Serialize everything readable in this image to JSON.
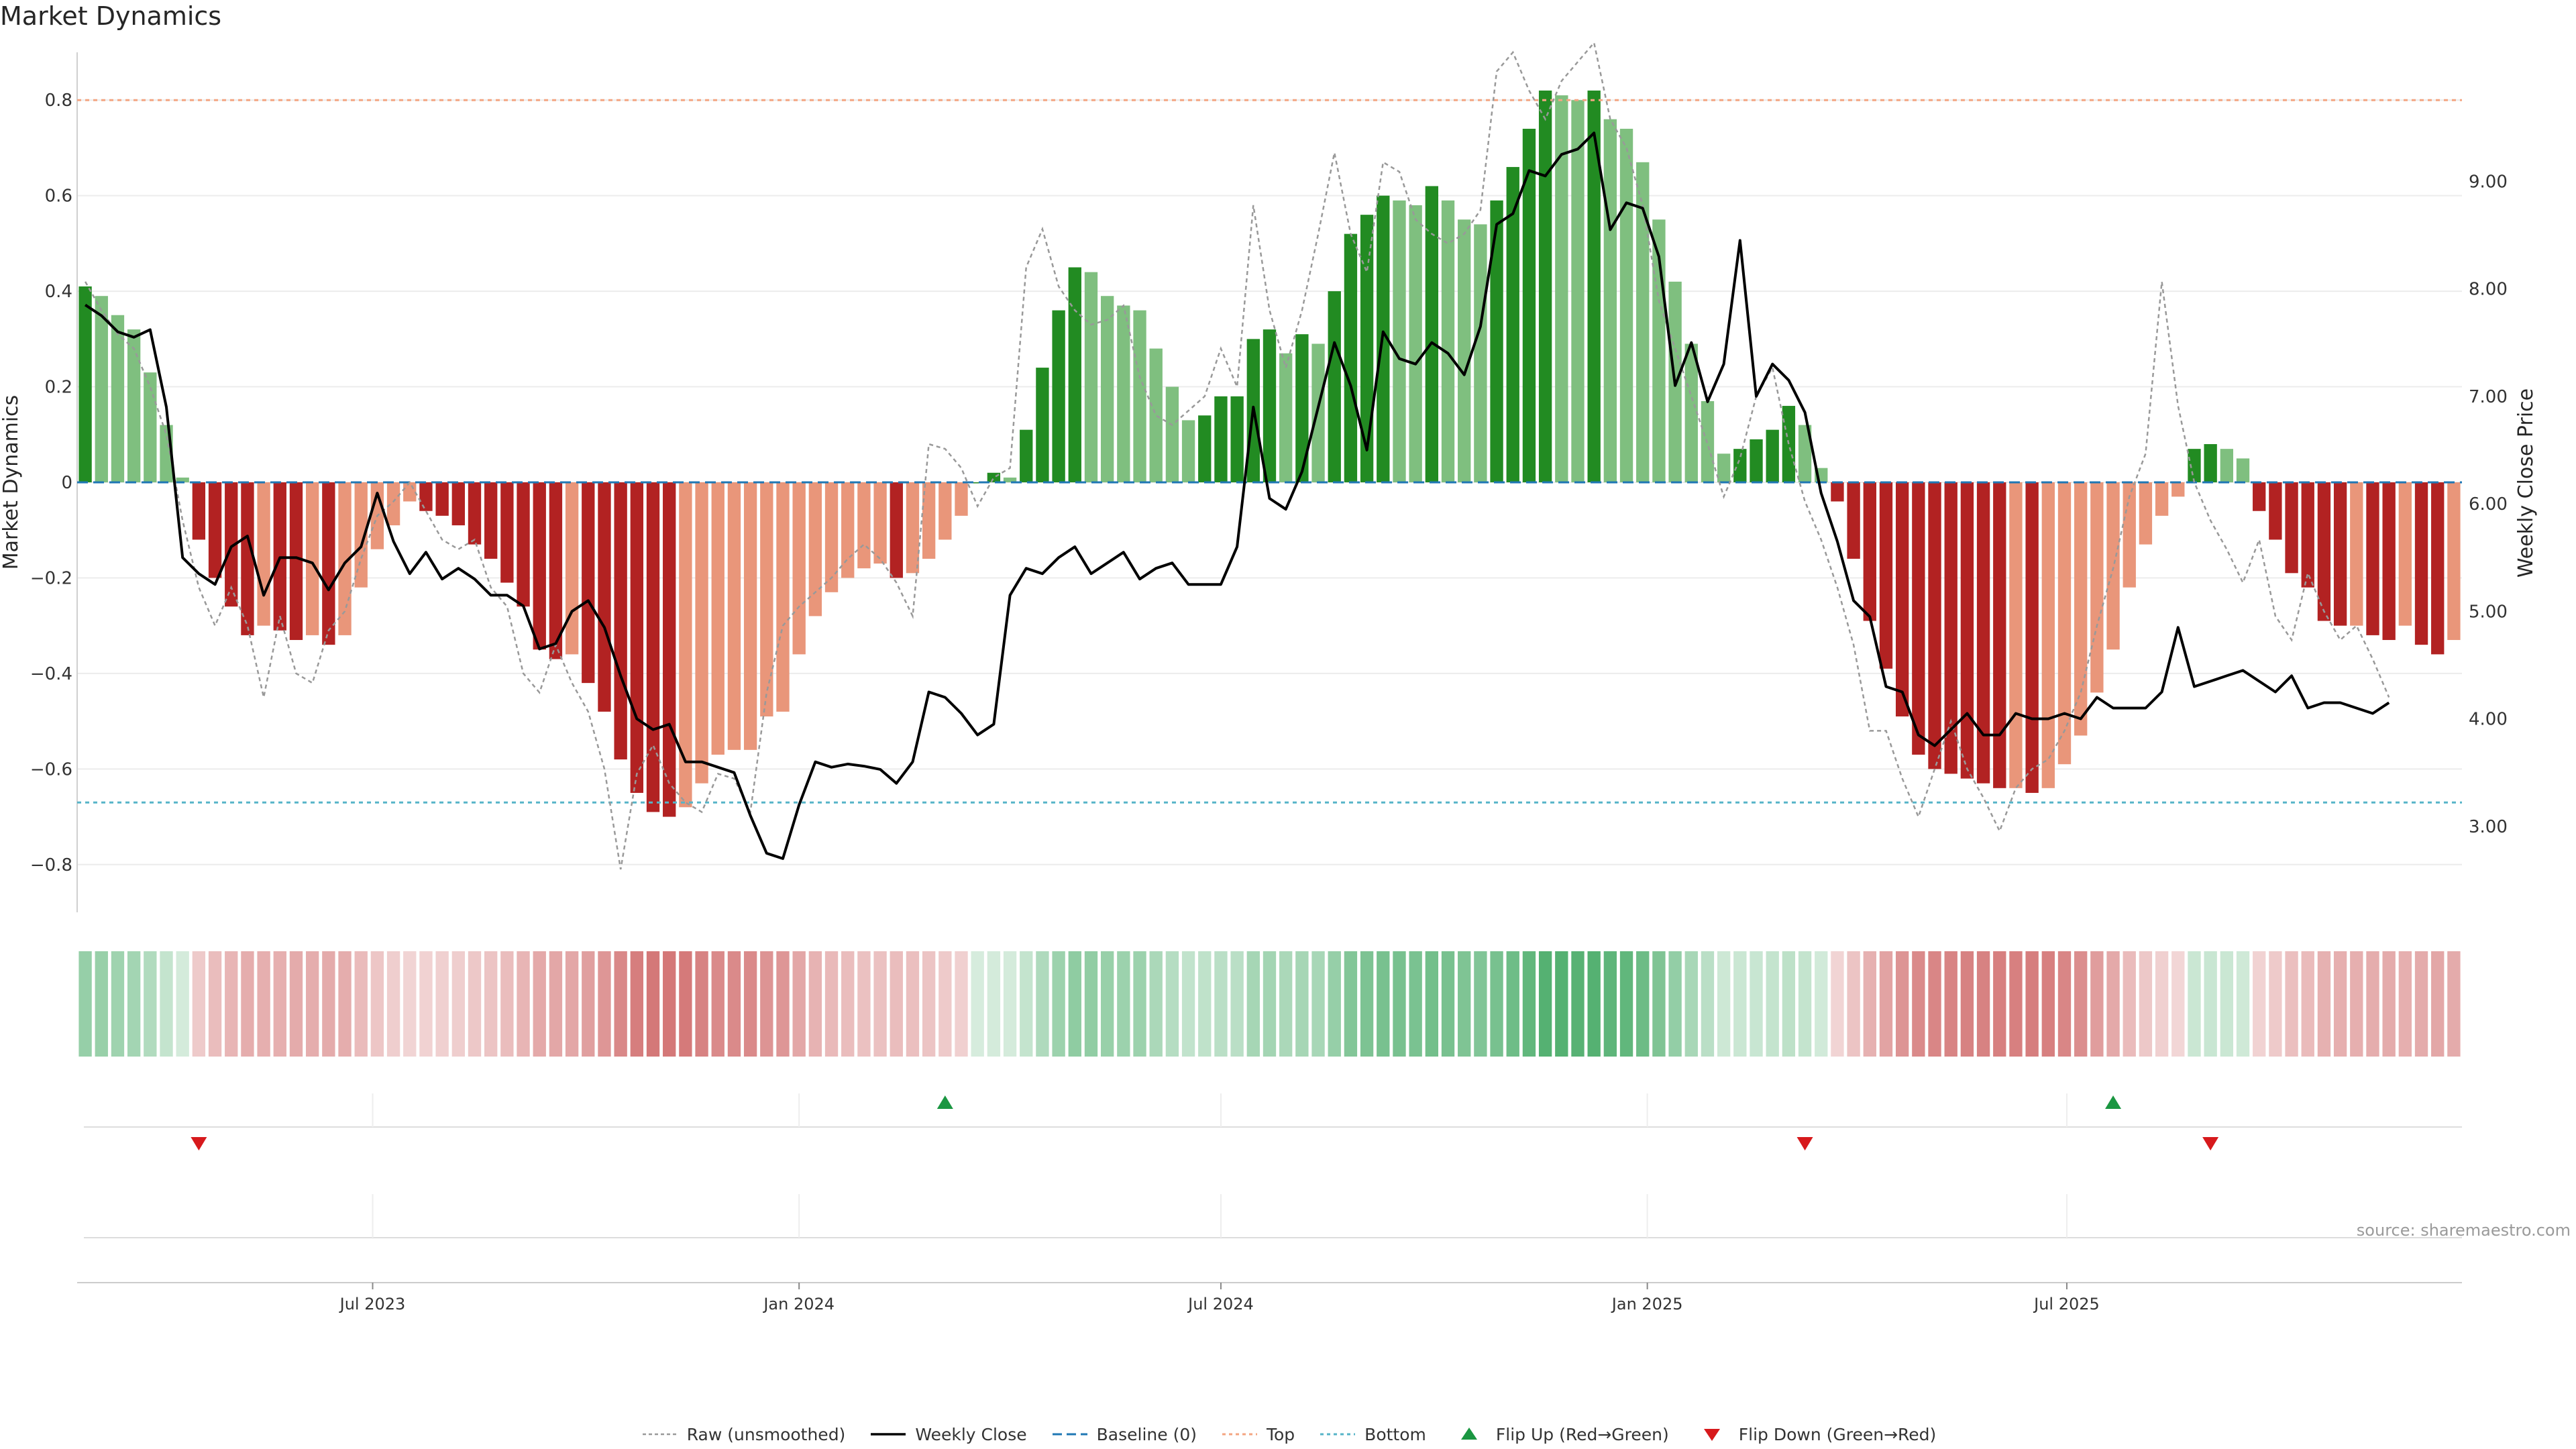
{
  "title": "Market Dynamics",
  "source": "source: sharemaestro.com",
  "legend": [
    {
      "label": "Raw (unsmoothed)",
      "symbol": "raw"
    },
    {
      "label": "Weekly Close",
      "symbol": "close"
    },
    {
      "label": "Baseline (0)",
      "symbol": "baseline"
    },
    {
      "label": "Top",
      "symbol": "top"
    },
    {
      "label": "Bottom",
      "symbol": "bottom"
    },
    {
      "label": "Flip Up (Red→Green)",
      "symbol": "flipup"
    },
    {
      "label": "Flip Down (Green→Red)",
      "symbol": "flipdown"
    }
  ],
  "colors": {
    "strong_green": "#228B22",
    "light_green": "#7FBF7F",
    "strong_red": "#B22222",
    "light_red": "#E9967A",
    "close_line": "#000000",
    "raw_line": "#999999",
    "baseline": "#1f77b4",
    "top": "#f4a582",
    "bottom": "#56b4c8",
    "flip_up": "#1a9641",
    "flip_down": "#d7191c"
  },
  "chart_data": {
    "type": "bar",
    "title": "Market Dynamics",
    "ylabel": "Market Dynamics",
    "y2label": "Weekly Close Price",
    "ylim": [
      -0.9,
      0.9
    ],
    "y_ticks": [
      -0.8,
      -0.6,
      -0.4,
      -0.2,
      0,
      0.2,
      0.4,
      0.6,
      0.8
    ],
    "y_tick_labels": [
      "−0.8",
      "−0.6",
      "−0.4",
      "−0.2",
      "0",
      "0.2",
      "0.4",
      "0.6",
      "0.8"
    ],
    "y2lim": [
      2.2,
      10.2
    ],
    "y2_ticks": [
      3,
      4,
      5,
      6,
      7,
      8,
      9
    ],
    "y2_tick_labels": [
      "3.00",
      "4.00",
      "5.00",
      "6.00",
      "7.00",
      "8.00",
      "9.00"
    ],
    "top_level": 0.8,
    "bottom_level": -0.67,
    "x_start": "2023-02-27",
    "x_ticks": [
      {
        "date": "2023-07-01",
        "label": "Jul 2023"
      },
      {
        "date": "2024-01-01",
        "label": "Jan 2024"
      },
      {
        "date": "2024-07-01",
        "label": "Jul 2024"
      },
      {
        "date": "2025-01-01",
        "label": "Jan 2025"
      },
      {
        "date": "2025-07-01",
        "label": "Jul 2025"
      }
    ],
    "dynamics": [
      0.41,
      0.39,
      0.35,
      0.32,
      0.23,
      0.12,
      0.01,
      -0.12,
      -0.2,
      -0.26,
      -0.32,
      -0.3,
      -0.31,
      -0.33,
      -0.32,
      -0.34,
      -0.32,
      -0.22,
      -0.14,
      -0.09,
      -0.04,
      -0.06,
      -0.07,
      -0.09,
      -0.13,
      -0.16,
      -0.21,
      -0.26,
      -0.35,
      -0.37,
      -0.36,
      -0.42,
      -0.48,
      -0.58,
      -0.65,
      -0.69,
      -0.7,
      -0.68,
      -0.63,
      -0.57,
      -0.56,
      -0.56,
      -0.49,
      -0.48,
      -0.36,
      -0.28,
      -0.23,
      -0.2,
      -0.18,
      -0.17,
      -0.2,
      -0.19,
      -0.16,
      -0.12,
      -0.07,
      0.0,
      0.02,
      0.01,
      0.11,
      0.24,
      0.36,
      0.45,
      0.44,
      0.39,
      0.37,
      0.36,
      0.28,
      0.2,
      0.13,
      0.14,
      0.18,
      0.18,
      0.3,
      0.32,
      0.27,
      0.31,
      0.29,
      0.4,
      0.52,
      0.56,
      0.6,
      0.59,
      0.58,
      0.62,
      0.59,
      0.55,
      0.54,
      0.59,
      0.66,
      0.74,
      0.82,
      0.81,
      0.8,
      0.82,
      0.76,
      0.74,
      0.67,
      0.55,
      0.42,
      0.29,
      0.17,
      0.06,
      0.07,
      0.09,
      0.11,
      0.16,
      0.12,
      0.03,
      -0.04,
      -0.16,
      -0.29,
      -0.39,
      -0.49,
      -0.57,
      -0.6,
      -0.61,
      -0.62,
      -0.63,
      -0.64,
      -0.64,
      -0.65,
      -0.64,
      -0.59,
      -0.53,
      -0.44,
      -0.35,
      -0.22,
      -0.13,
      -0.07,
      -0.03,
      0.07,
      0.08,
      0.07,
      0.05,
      -0.06,
      -0.12,
      -0.19,
      -0.22,
      -0.29,
      -0.3,
      -0.3,
      -0.32,
      -0.33,
      -0.3,
      -0.34,
      -0.36,
      -0.33
    ],
    "raw": [
      0.42,
      0.36,
      0.31,
      0.28,
      0.2,
      0.1,
      -0.08,
      -0.22,
      -0.3,
      -0.22,
      -0.3,
      -0.45,
      -0.28,
      -0.4,
      -0.42,
      -0.31,
      -0.27,
      -0.16,
      -0.07,
      -0.04,
      0.0,
      -0.06,
      -0.12,
      -0.14,
      -0.12,
      -0.22,
      -0.26,
      -0.4,
      -0.44,
      -0.34,
      -0.42,
      -0.48,
      -0.6,
      -0.81,
      -0.61,
      -0.55,
      -0.63,
      -0.67,
      -0.69,
      -0.61,
      -0.62,
      -0.69,
      -0.44,
      -0.3,
      -0.26,
      -0.23,
      -0.2,
      -0.16,
      -0.13,
      -0.16,
      -0.21,
      -0.28,
      0.08,
      0.07,
      0.03,
      -0.05,
      0.01,
      0.03,
      0.45,
      0.53,
      0.41,
      0.36,
      0.33,
      0.34,
      0.37,
      0.22,
      0.14,
      0.12,
      0.15,
      0.18,
      0.28,
      0.2,
      0.58,
      0.36,
      0.24,
      0.36,
      0.52,
      0.69,
      0.52,
      0.44,
      0.67,
      0.65,
      0.55,
      0.52,
      0.5,
      0.52,
      0.57,
      0.86,
      0.9,
      0.82,
      0.76,
      0.84,
      0.88,
      0.92,
      0.76,
      0.7,
      0.58,
      0.38,
      0.28,
      0.18,
      0.08,
      -0.03,
      0.05,
      0.18,
      0.24,
      0.08,
      -0.04,
      -0.12,
      -0.22,
      -0.34,
      -0.52,
      -0.52,
      -0.62,
      -0.7,
      -0.6,
      -0.5,
      -0.6,
      -0.66,
      -0.73,
      -0.64,
      -0.6,
      -0.58,
      -0.52,
      -0.44,
      -0.3,
      -0.18,
      -0.03,
      0.06,
      0.42,
      0.16,
      0.0,
      -0.08,
      -0.14,
      -0.21,
      -0.12,
      -0.28,
      -0.33,
      -0.19,
      -0.27,
      -0.33,
      -0.3,
      -0.37,
      -0.45
    ],
    "weekly_close": [
      7.85,
      7.75,
      7.6,
      7.55,
      7.62,
      6.9,
      5.5,
      5.35,
      5.25,
      5.6,
      5.7,
      5.15,
      5.5,
      5.5,
      5.45,
      5.2,
      5.45,
      5.6,
      6.1,
      5.65,
      5.35,
      5.55,
      5.3,
      5.4,
      5.3,
      5.15,
      5.15,
      5.05,
      4.65,
      4.7,
      5.0,
      5.1,
      4.85,
      4.4,
      4.0,
      3.9,
      3.95,
      3.6,
      3.6,
      3.55,
      3.5,
      3.1,
      2.75,
      2.7,
      3.2,
      3.6,
      3.55,
      3.58,
      3.56,
      3.53,
      3.4,
      3.6,
      4.25,
      4.2,
      4.05,
      3.85,
      3.95,
      5.15,
      5.4,
      5.35,
      5.5,
      5.6,
      5.35,
      5.45,
      5.55,
      5.3,
      5.4,
      5.45,
      5.25,
      5.25,
      5.25,
      5.6,
      6.9,
      6.05,
      5.95,
      6.3,
      6.9,
      7.5,
      7.1,
      6.5,
      7.6,
      7.35,
      7.3,
      7.5,
      7.4,
      7.2,
      7.65,
      8.6,
      8.7,
      9.1,
      9.05,
      9.25,
      9.3,
      9.45,
      8.55,
      8.8,
      8.75,
      8.3,
      7.1,
      7.5,
      6.95,
      7.3,
      8.45,
      7.0,
      7.3,
      7.15,
      6.85,
      6.1,
      5.65,
      5.1,
      4.95,
      4.3,
      4.25,
      3.85,
      3.75,
      3.9,
      4.05,
      3.85,
      3.85,
      4.05,
      4.0,
      4.0,
      4.05,
      4.0,
      4.2,
      4.1,
      4.1,
      4.1,
      4.25,
      4.85,
      4.3,
      4.35,
      4.4,
      4.45,
      4.35,
      4.25,
      4.4,
      4.1,
      4.15,
      4.15,
      4.1,
      4.05,
      4.15
    ],
    "heatstrip_label": "",
    "flip_up_dates": [
      "2024-03-04",
      "2025-07-21"
    ],
    "flip_down_dates": [
      "2023-04-17",
      "2025-03-10",
      "2025-09-01"
    ],
    "legend_placement": "bottom-center",
    "grid": true
  }
}
